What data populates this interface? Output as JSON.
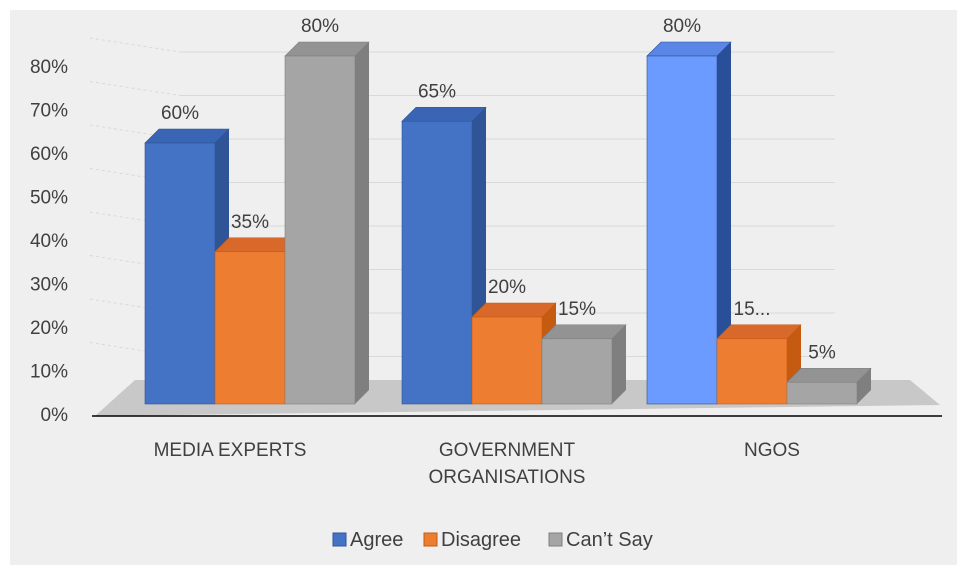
{
  "chart_data": {
    "type": "bar",
    "style": "3d-clustered-column",
    "categories": [
      [
        "MEDIA EXPERTS"
      ],
      [
        "GOVERNMENT",
        "ORGANISATIONS"
      ],
      [
        "NGOS"
      ]
    ],
    "series": [
      {
        "name": "Agree",
        "values": [
          60,
          65,
          80
        ],
        "labels": [
          "60%",
          "65%",
          "80%"
        ]
      },
      {
        "name": "Disagree",
        "values": [
          35,
          20,
          15
        ],
        "labels": [
          "35%",
          "20%",
          "15..."
        ]
      },
      {
        "name": "Can’t Say",
        "values": [
          80,
          15,
          5
        ],
        "labels": [
          "80%",
          "15%",
          "5%"
        ]
      }
    ],
    "y_ticks": [
      "0%",
      "10%",
      "20%",
      "30%",
      "40%",
      "50%",
      "60%",
      "70%",
      "80%"
    ],
    "ylim": [
      0,
      80
    ],
    "grid": true,
    "legend_position": "bottom",
    "colors": {
      "series": [
        {
          "front": "#4472c4",
          "side": "#2f5597",
          "top": "#3a65b5"
        },
        {
          "front": "#ed7d31",
          "side": "#c55a11",
          "top": "#d8692a"
        },
        {
          "front": "#a5a5a5",
          "side": "#7f7f7f",
          "top": "#939393"
        }
      ],
      "ngo_agree": {
        "front": "#6b9bff",
        "side": "#2a4f99",
        "top": "#5a86e6"
      },
      "floor": "#c8c8c8",
      "floor_dark": "#b4b4b4",
      "gridline": "#d9d9d9",
      "axis": "#000000",
      "background": "#efefef"
    }
  }
}
